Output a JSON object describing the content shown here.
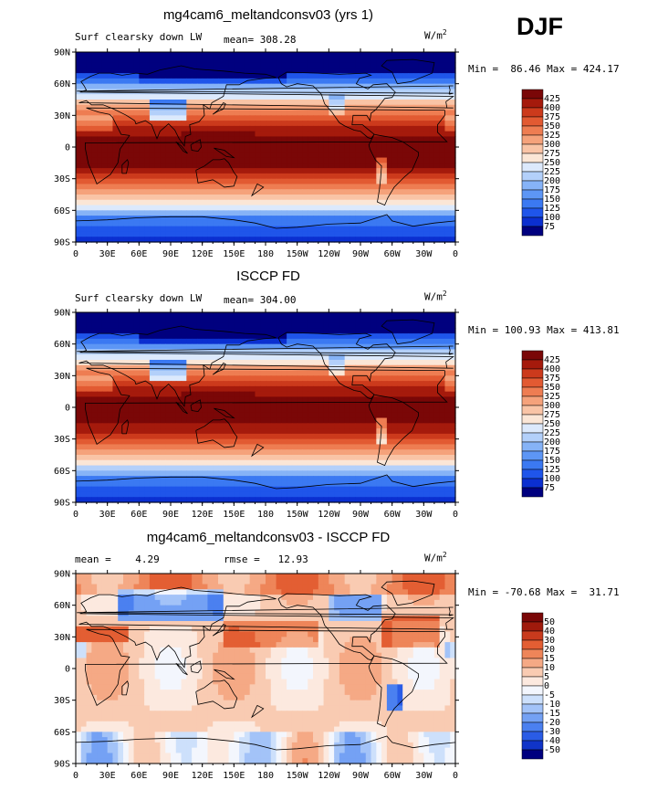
{
  "header": {
    "season": "DJF"
  },
  "x_ticks": [
    "0",
    "30E",
    "60E",
    "90E",
    "120E",
    "150E",
    "180",
    "150W",
    "120W",
    "90W",
    "60W",
    "30W",
    "0"
  ],
  "y_ticks": [
    "90N",
    "60N",
    "30N",
    "0",
    "30S",
    "60S",
    "90S"
  ],
  "panels": [
    {
      "title": "mg4cam6_meltandconsv03 (yrs 1)",
      "left_label": "Surf clearsky down LW",
      "center_label": "mean= 308.28",
      "units": "W/m",
      "units_exp": "2",
      "minmax": "Min =  86.46 Max = 424.17",
      "field": "clim",
      "colorbar_labels": [
        "425",
        "400",
        "375",
        "350",
        "325",
        "300",
        "275",
        "250",
        "225",
        "200",
        "175",
        "150",
        "125",
        "100",
        "75"
      ]
    },
    {
      "title": "ISCCP FD",
      "left_label": "Surf clearsky down LW",
      "center_label": "mean= 304.00",
      "units": "W/m",
      "units_exp": "2",
      "minmax": "Min = 100.93 Max = 413.81",
      "field": "clim",
      "colorbar_labels": [
        "425",
        "400",
        "375",
        "350",
        "325",
        "300",
        "275",
        "250",
        "225",
        "200",
        "175",
        "150",
        "125",
        "100",
        "75"
      ]
    },
    {
      "title": "mg4cam6_meltandconsv03 - ISCCP FD",
      "left_label": "mean =    4.29",
      "center_label": "rmse =   12.93",
      "units": "W/m",
      "units_exp": "2",
      "minmax": "Min = -70.68 Max =  31.71",
      "field": "diff",
      "colorbar_labels": [
        "50",
        "40",
        "30",
        "20",
        "15",
        "10",
        "5",
        "0",
        "-5",
        "-10",
        "-15",
        "-20",
        "-30",
        "-40",
        "-50"
      ]
    }
  ],
  "colors": {
    "clim_scale": [
      "#00007f",
      "#0b2fd0",
      "#1f55ea",
      "#3b79f2",
      "#5d96f5",
      "#86b3f7",
      "#b3d0fa",
      "#dce9fc",
      "#fbe6d6",
      "#f9c4a6",
      "#f5a27b",
      "#ee7d52",
      "#e25a32",
      "#cc3a1c",
      "#a51a0c",
      "#7a0707"
    ],
    "diff_scale": [
      "#00007f",
      "#1034c8",
      "#2a5ce6",
      "#4b80f0",
      "#74a1f4",
      "#a3c3f8",
      "#cde0fb",
      "#f3f6fd",
      "#fce9df",
      "#f9cbb2",
      "#f5a985",
      "#ee8559",
      "#e35e33",
      "#c83a1d",
      "#a01a0c",
      "#7a0707"
    ],
    "coast": "#000000"
  }
}
